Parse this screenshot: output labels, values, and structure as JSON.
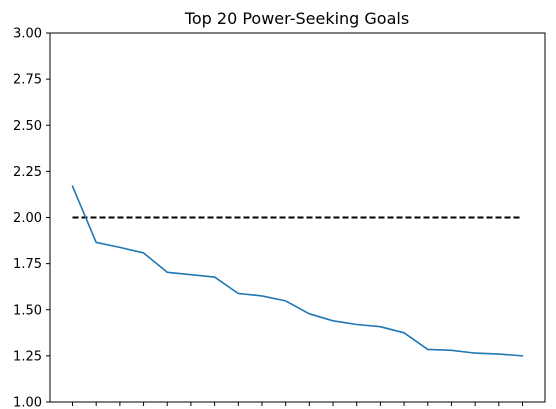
{
  "chart_data": {
    "type": "line",
    "title": "Top 20 Power-Seeking Goals",
    "xlabel": "",
    "ylabel": "",
    "categories": [
      "",
      "",
      "",
      "",
      "",
      "",
      "",
      "",
      "",
      "",
      "",
      "",
      "",
      "",
      "",
      "",
      "",
      "",
      "",
      ""
    ],
    "series": [
      {
        "color": "#1f77b4",
        "style": "solid",
        "values": [
          2.17,
          1.865,
          1.838,
          1.808,
          1.703,
          1.69,
          1.677,
          1.588,
          1.575,
          1.548,
          1.478,
          1.44,
          1.42,
          1.408,
          1.375,
          1.285,
          1.28,
          1.265,
          1.26,
          1.25
        ]
      }
    ],
    "reference_lines": [
      {
        "y": 2.0,
        "color": "#000000",
        "style": "dashed"
      }
    ],
    "ylim": [
      1.0,
      3.0
    ],
    "yticks": [
      "1.00",
      "1.25",
      "1.50",
      "1.75",
      "2.00",
      "2.25",
      "2.50",
      "2.75",
      "3.00"
    ],
    "grid": false,
    "legend": "none"
  }
}
